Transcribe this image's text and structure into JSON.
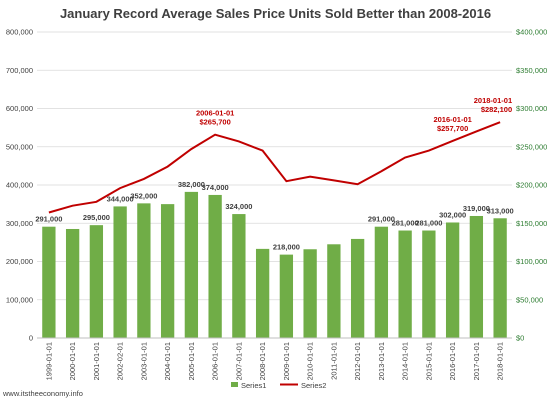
{
  "chart_data": {
    "type": "bar",
    "title": "January Record Average Sales Price Units Sold Better than 2008-2016",
    "categories": [
      "1999-01-01",
      "2000-01-01",
      "2001-01-01",
      "2002-02-01",
      "2003-01-01",
      "2004-01-01",
      "2005-01-01",
      "2006-01-01",
      "2007-01-01",
      "2008-01-01",
      "2009-01-01",
      "2010-01-01",
      "2011-01-01",
      "2012-01-01",
      "2013-01-01",
      "2014-01-01",
      "2015-01-01",
      "2016-01-01",
      "2017-01-01",
      "2018-01-01"
    ],
    "y_left": {
      "min": 0,
      "max": 800000,
      "step": 100000,
      "tick_labels": [
        "0",
        "100,000",
        "200,000",
        "300,000",
        "400,000",
        "500,000",
        "600,000",
        "700,000",
        "800,000"
      ]
    },
    "y_right": {
      "min": 0,
      "max": 400000,
      "step": 50000,
      "tick_labels": [
        "$0",
        "$50,000",
        "$100,000",
        "$150,000",
        "$200,000",
        "$250,000",
        "$300,000",
        "$350,000",
        "$400,000"
      ]
    },
    "series": [
      {
        "name": "Series1",
        "type": "bar",
        "axis": "left",
        "color": "#70ad47",
        "values": [
          291000,
          285000,
          295000,
          344000,
          352000,
          350000,
          382000,
          374000,
          324000,
          233000,
          218000,
          232000,
          245000,
          259000,
          291000,
          281000,
          281000,
          302000,
          319000,
          313000
        ],
        "data_labels": [
          "291,000",
          "",
          "295,000",
          "344,000",
          "352,000",
          "",
          "382,000",
          "374,000",
          "324,000",
          "",
          "218,000",
          "",
          "",
          "",
          "291,000",
          "281,000",
          "281,000",
          "302,000",
          "319,000",
          "313,000"
        ]
      },
      {
        "name": "Series2",
        "type": "line",
        "axis": "right",
        "color": "#c00000",
        "values": [
          164000,
          173000,
          178000,
          196000,
          208000,
          224000,
          247000,
          265700,
          257000,
          245000,
          205000,
          211000,
          206000,
          201000,
          218000,
          236000,
          245000,
          257700,
          270000,
          282100
        ]
      }
    ],
    "annotations": [
      {
        "index": 7,
        "lines": [
          "2006-01-01",
          "$265,700"
        ]
      },
      {
        "index": 17,
        "lines": [
          "2016-01-01",
          "$257,700"
        ]
      },
      {
        "index": 19,
        "lines": [
          "2018-01-01",
          "$282,100"
        ]
      }
    ],
    "legend": {
      "position": "bottom",
      "entries": [
        "Series1",
        "Series2"
      ]
    },
    "grid": true,
    "source": "www.itstheeconomy.info"
  }
}
